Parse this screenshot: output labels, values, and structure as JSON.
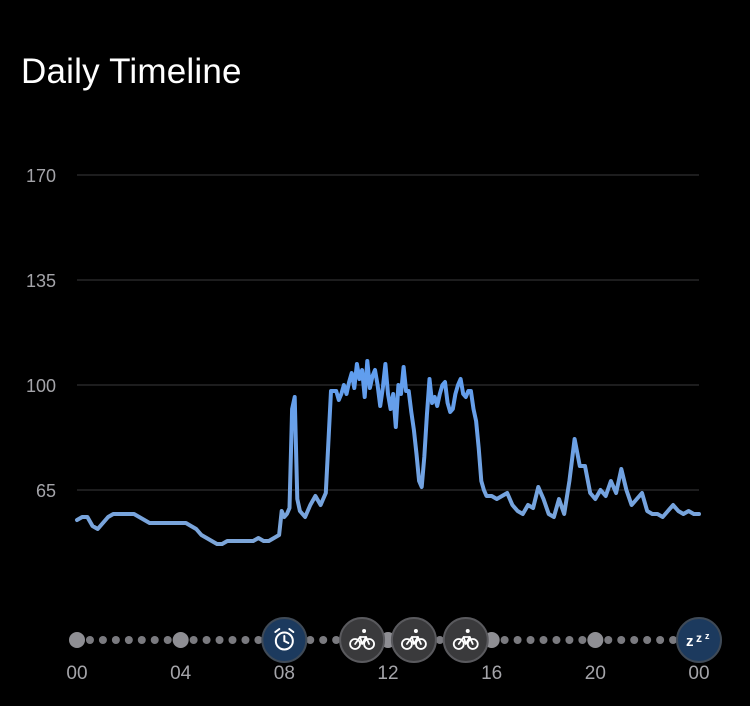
{
  "title": "Daily Timeline",
  "chart_data": {
    "type": "line",
    "title": "Daily Timeline",
    "xlabel": "",
    "ylabel": "",
    "xlim": [
      0,
      24
    ],
    "ylim": [
      30,
      170
    ],
    "yticks": [
      65,
      100,
      135,
      170
    ],
    "grid": true,
    "xtick_labels": [
      {
        "hour": 0,
        "label": "00"
      },
      {
        "hour": 4,
        "label": "04"
      },
      {
        "hour": 8,
        "label": "08"
      },
      {
        "hour": 12,
        "label": "12"
      },
      {
        "hour": 16,
        "label": "16"
      },
      {
        "hour": 20,
        "label": "20"
      },
      {
        "hour": 24,
        "label": "00"
      }
    ],
    "colors": {
      "low": "#7fa6d6",
      "high": "#5b9cf3",
      "grid": "#3a3a3c",
      "tick": "#a4a4a9"
    },
    "series": [
      {
        "x": [
          0.0,
          0.2,
          0.4,
          0.6,
          0.8,
          1.0,
          1.2,
          1.4,
          1.6,
          1.8,
          2.0,
          2.2,
          2.4,
          2.6,
          2.8,
          3.0,
          3.2,
          3.4,
          3.6,
          3.8,
          4.0,
          4.2,
          4.4,
          4.6,
          4.8,
          5.0,
          5.2,
          5.4,
          5.6,
          5.8,
          6.0,
          6.2,
          6.4,
          6.6,
          6.8,
          7.0,
          7.2,
          7.4,
          7.6,
          7.8,
          7.9,
          8.0,
          8.1,
          8.2,
          8.3,
          8.4,
          8.5,
          8.6,
          8.7,
          8.8,
          8.9,
          9.0,
          9.2,
          9.4,
          9.6,
          9.8,
          10.0,
          10.1,
          10.2,
          10.3,
          10.4,
          10.5,
          10.6,
          10.7,
          10.8,
          10.9,
          11.0,
          11.1,
          11.2,
          11.3,
          11.4,
          11.5,
          11.6,
          11.7,
          11.8,
          11.9,
          12.0,
          12.1,
          12.2,
          12.3,
          12.4,
          12.5,
          12.6,
          12.7,
          12.8,
          12.9,
          13.0,
          13.1,
          13.2,
          13.3,
          13.4,
          13.5,
          13.6,
          13.7,
          13.8,
          13.9,
          14.0,
          14.1,
          14.2,
          14.3,
          14.4,
          14.5,
          14.6,
          14.7,
          14.8,
          14.9,
          15.0,
          15.1,
          15.2,
          15.3,
          15.4,
          15.5,
          15.6,
          15.7,
          15.8,
          16.0,
          16.2,
          16.4,
          16.6,
          16.8,
          17.0,
          17.2,
          17.4,
          17.6,
          17.8,
          18.0,
          18.2,
          18.4,
          18.6,
          18.8,
          19.0,
          19.2,
          19.4,
          19.6,
          19.8,
          20.0,
          20.2,
          20.4,
          20.6,
          20.8,
          21.0,
          21.2,
          21.4,
          21.6,
          21.8,
          22.0,
          22.2,
          22.4,
          22.6,
          22.8,
          23.0,
          23.2,
          23.4,
          23.6,
          23.8,
          24.0
        ],
        "values": [
          55,
          56,
          56,
          53,
          52,
          54,
          56,
          57,
          57,
          57,
          57,
          57,
          56,
          55,
          54,
          54,
          54,
          54,
          54,
          54,
          54,
          54,
          53,
          52,
          50,
          49,
          48,
          47,
          47,
          48,
          48,
          48,
          48,
          48,
          48,
          49,
          48,
          48,
          49,
          50,
          58,
          56,
          57,
          59,
          92,
          96,
          62,
          58,
          57,
          56,
          58,
          60,
          63,
          60,
          64,
          98,
          98,
          95,
          97,
          100,
          97,
          101,
          104,
          99,
          107,
          102,
          105,
          96,
          108,
          99,
          103,
          105,
          100,
          93,
          99,
          107,
          97,
          92,
          97,
          86,
          100,
          97,
          106,
          98,
          98,
          91,
          85,
          77,
          68,
          66,
          76,
          90,
          102,
          94,
          96,
          93,
          97,
          100,
          101,
          94,
          91,
          92,
          97,
          100,
          102,
          97,
          96,
          98,
          98,
          92,
          88,
          79,
          68,
          65,
          63,
          63,
          62,
          63,
          64,
          60,
          58,
          57,
          60,
          59,
          66,
          62,
          57,
          56,
          62,
          57,
          68,
          82,
          73,
          73,
          64,
          62,
          65,
          63,
          68,
          64,
          72,
          65,
          60,
          62,
          64,
          58,
          57,
          57,
          56,
          58,
          60,
          58,
          57,
          58,
          57,
          57
        ]
      }
    ],
    "timeline_markers": [
      {
        "hour": 8,
        "icon": "alarm-clock-icon"
      },
      {
        "hour": 11,
        "icon": "bicycle-icon"
      },
      {
        "hour": 13,
        "icon": "bicycle-icon"
      },
      {
        "hour": 15,
        "icon": "bicycle-icon"
      },
      {
        "hour": 24,
        "icon": "sleep-zzz-icon"
      }
    ]
  }
}
